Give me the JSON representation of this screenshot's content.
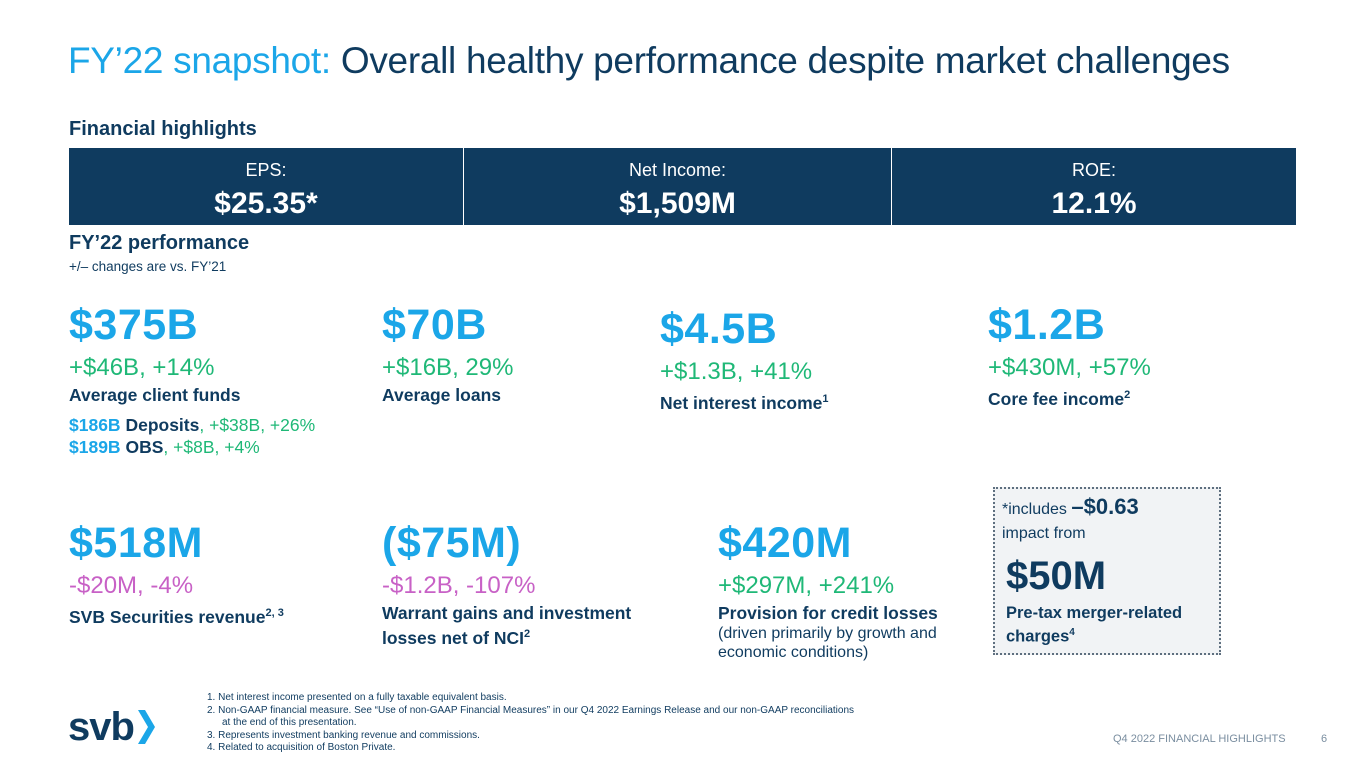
{
  "title": {
    "prefix": "FY’22 snapshot:",
    "main": "Overall healthy performance despite market challenges"
  },
  "highlights": {
    "heading": "Financial highlights",
    "items": [
      {
        "label": "EPS:",
        "value": "$25.35*"
      },
      {
        "label": "Net Income:",
        "value": "$1,509M"
      },
      {
        "label": "ROE:",
        "value": "12.1%"
      }
    ]
  },
  "performance": {
    "heading": "FY’22 performance",
    "note": "+/– changes are vs. FY’21"
  },
  "metrics": {
    "client_funds": {
      "value": "$375B",
      "change": "+$46B, +14%",
      "label": "Average client funds"
    },
    "deposits": {
      "amount": "$186B",
      "name": "Deposits",
      "sep": ",",
      "change": "+$38B, +26%"
    },
    "obs": {
      "amount": "$189B",
      "name": "OBS",
      "sep": ",",
      "change": "+$8B, +4%"
    },
    "loans": {
      "value": "$70B",
      "change": "+$16B, 29%",
      "label": "Average loans"
    },
    "nii": {
      "value": "$4.5B",
      "change": "+$1.3B, +41%",
      "label": "Net interest income",
      "sup": "1"
    },
    "core_fee": {
      "value": "$1.2B",
      "change": "+$430M, +57%",
      "label": "Core fee income",
      "sup": "2"
    },
    "securities": {
      "value": "$518M",
      "change": "-$20M, -4%",
      "label": "SVB Securities revenue",
      "sup": "2, 3"
    },
    "warrant": {
      "value": "($75M)",
      "change": "-$1.2B, -107%",
      "label_line1": "Warrant gains and investment",
      "label_line2": "losses net of NCI",
      "sup": "2"
    },
    "provision": {
      "value": "$420M",
      "change": "+$297M, +241%",
      "label": "Provision for credit losses",
      "note_line1": "(driven primarily by growth and",
      "note_line2": "economic conditions)"
    }
  },
  "callout": {
    "includes": "*includes",
    "impact_value": "–$0.63",
    "impact_from": "impact from",
    "value": "$50M",
    "label_line1": "Pre-tax merger-related",
    "label_line2": "charges",
    "sup": "4"
  },
  "footnotes": {
    "f1": "1.  Net interest income presented on a fully taxable equivalent basis.",
    "f2a": "2.  Non-GAAP financial measure. See “Use of non-GAAP Financial Measures” in our Q4 2022 Earnings Release and our non-GAAP reconciliations",
    "f2b": "at the end of this presentation.",
    "f3": "3.  Represents investment banking revenue and commissions.",
    "f4": "4.  Related to acquisition of Boston Private."
  },
  "logo": {
    "text": "svb"
  },
  "footer": {
    "section": "Q4 2022 FINANCIAL HIGHLIGHTS",
    "page": "6"
  },
  "colors": {
    "navy": "#0f3b5f",
    "blue": "#1ba6e8",
    "green": "#1fb877",
    "magenta": "#c861c6"
  }
}
